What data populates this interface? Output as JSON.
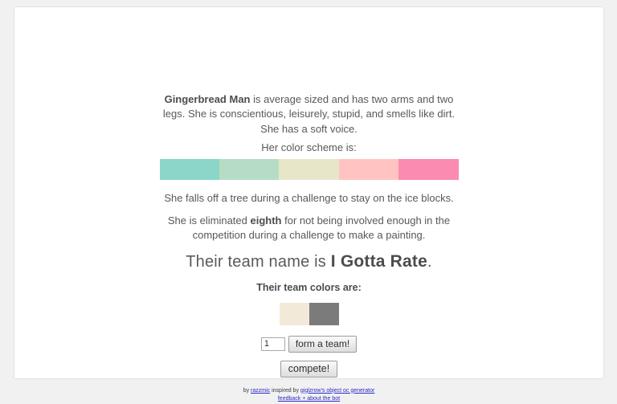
{
  "page": {
    "background": "#f1f1f1",
    "card_background": "#ffffff",
    "text_color": "#58585a"
  },
  "character": {
    "name": "Gingerbread Man",
    "description_rest": " is average sized and has two arms and two legs. She is conscientious, leisurely, stupid, and smells like dirt. She has a soft voice.",
    "color_scheme_label": "Her color scheme is:",
    "color_scheme": [
      "#8bd6c9",
      "#b7dcc5",
      "#e8e6c9",
      "#ffc4c2",
      "#fb8bb1"
    ],
    "challenge_text": "She falls off a tree during a challenge to stay on the ice blocks.",
    "elimination_prefix": "She is eliminated ",
    "elimination_place": "eighth",
    "elimination_suffix": " for not being involved enough in the competition during a challenge to make a painting."
  },
  "team": {
    "name_prefix": "Their team name is ",
    "name": "I Gotta Rate",
    "name_suffix": ".",
    "colors_label": "Their team colors are:",
    "colors": [
      "#f2e9d8",
      "#7b7b7b"
    ]
  },
  "controls": {
    "team_count_value": "1",
    "form_team_label": "form a team!",
    "compete_label": "compete!"
  },
  "footer": {
    "by_text": "by ",
    "author_link": "razzmic",
    "inspired_text": "  inspired by ",
    "inspiration_link": "giglzrow's object oc generator",
    "feedback_link": "feedback + about the bot"
  }
}
